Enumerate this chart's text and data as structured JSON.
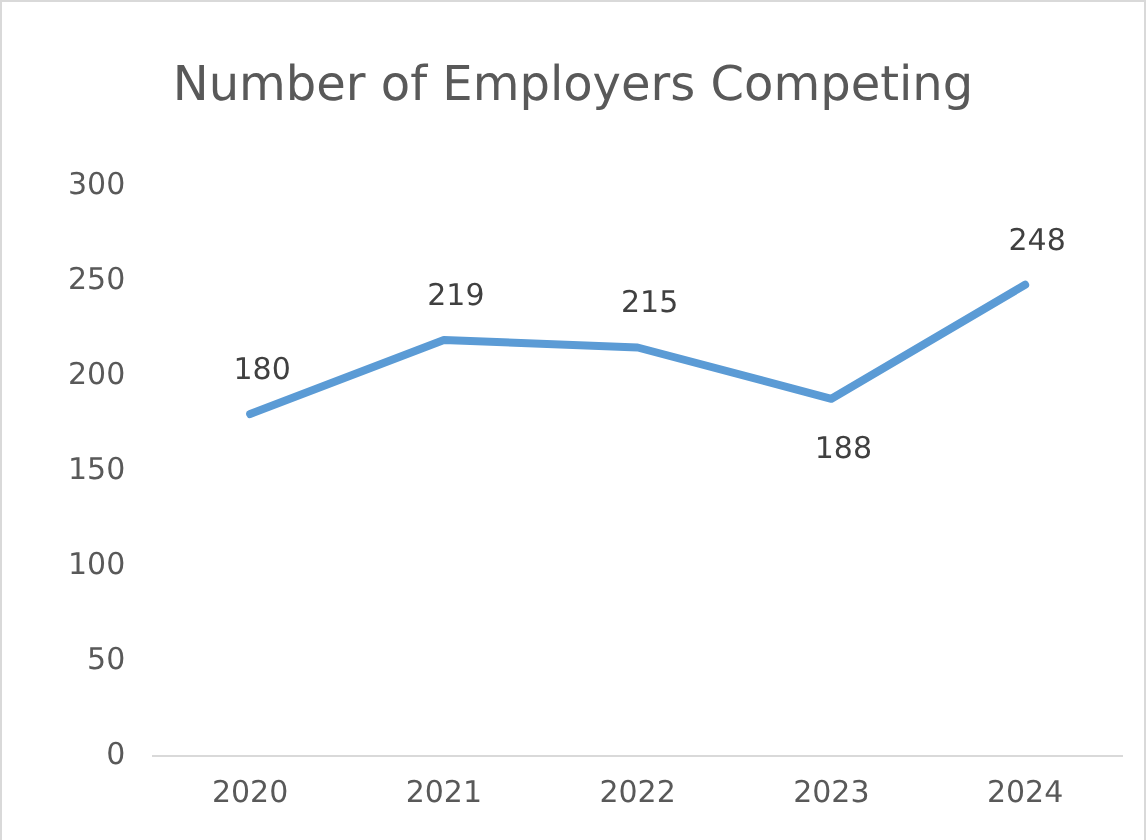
{
  "chart_data": {
    "type": "line",
    "title": "Number of Employers Competing",
    "categories": [
      "2020",
      "2021",
      "2022",
      "2023",
      "2024"
    ],
    "series": [
      {
        "color": "#5b9bd5",
        "values": [
          180,
          219,
          215,
          188,
          248
        ]
      }
    ],
    "ylim": [
      0,
      300
    ],
    "yticks": [
      0,
      50,
      100,
      150,
      200,
      250,
      300
    ],
    "grid": false,
    "legend": false,
    "marker": "none",
    "data_labels": true
  }
}
